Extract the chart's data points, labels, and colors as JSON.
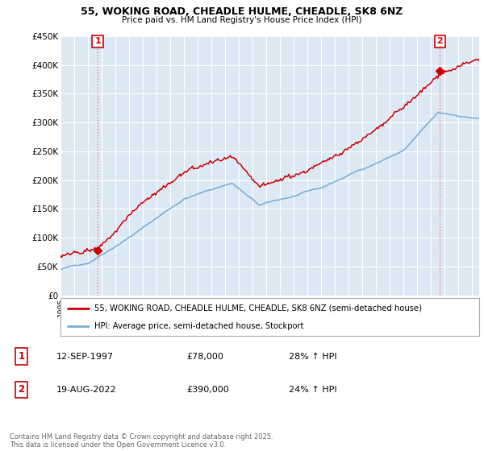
{
  "title_line1": "55, WOKING ROAD, CHEADLE HULME, CHEADLE, SK8 6NZ",
  "title_line2": "Price paid vs. HM Land Registry's House Price Index (HPI)",
  "ylim": [
    0,
    450000
  ],
  "yticks": [
    0,
    50000,
    100000,
    150000,
    200000,
    250000,
    300000,
    350000,
    400000,
    450000
  ],
  "ytick_labels": [
    "£0",
    "£50K",
    "£100K",
    "£150K",
    "£200K",
    "£250K",
    "£300K",
    "£350K",
    "£400K",
    "£450K"
  ],
  "bg_color": "#ffffff",
  "plot_bg_color": "#dce9f5",
  "grid_color": "#ffffff",
  "red_color": "#cc0000",
  "blue_color": "#7aaad0",
  "vline_color": "#e08080",
  "sale1_x": 1997.71,
  "sale1_price": 78000,
  "sale2_x": 2022.63,
  "sale2_price": 390000,
  "legend_entry1": "55, WOKING ROAD, CHEADLE HULME, CHEADLE, SK8 6NZ (semi-detached house)",
  "legend_entry2": "HPI: Average price, semi-detached house, Stockport",
  "note1_label": "1",
  "note1_date": "12-SEP-1997",
  "note1_price": "£78,000",
  "note1_hpi": "28% ↑ HPI",
  "note2_label": "2",
  "note2_date": "19-AUG-2022",
  "note2_price": "£390,000",
  "note2_hpi": "24% ↑ HPI",
  "copyright": "Contains HM Land Registry data © Crown copyright and database right 2025.\nThis data is licensed under the Open Government Licence v3.0."
}
